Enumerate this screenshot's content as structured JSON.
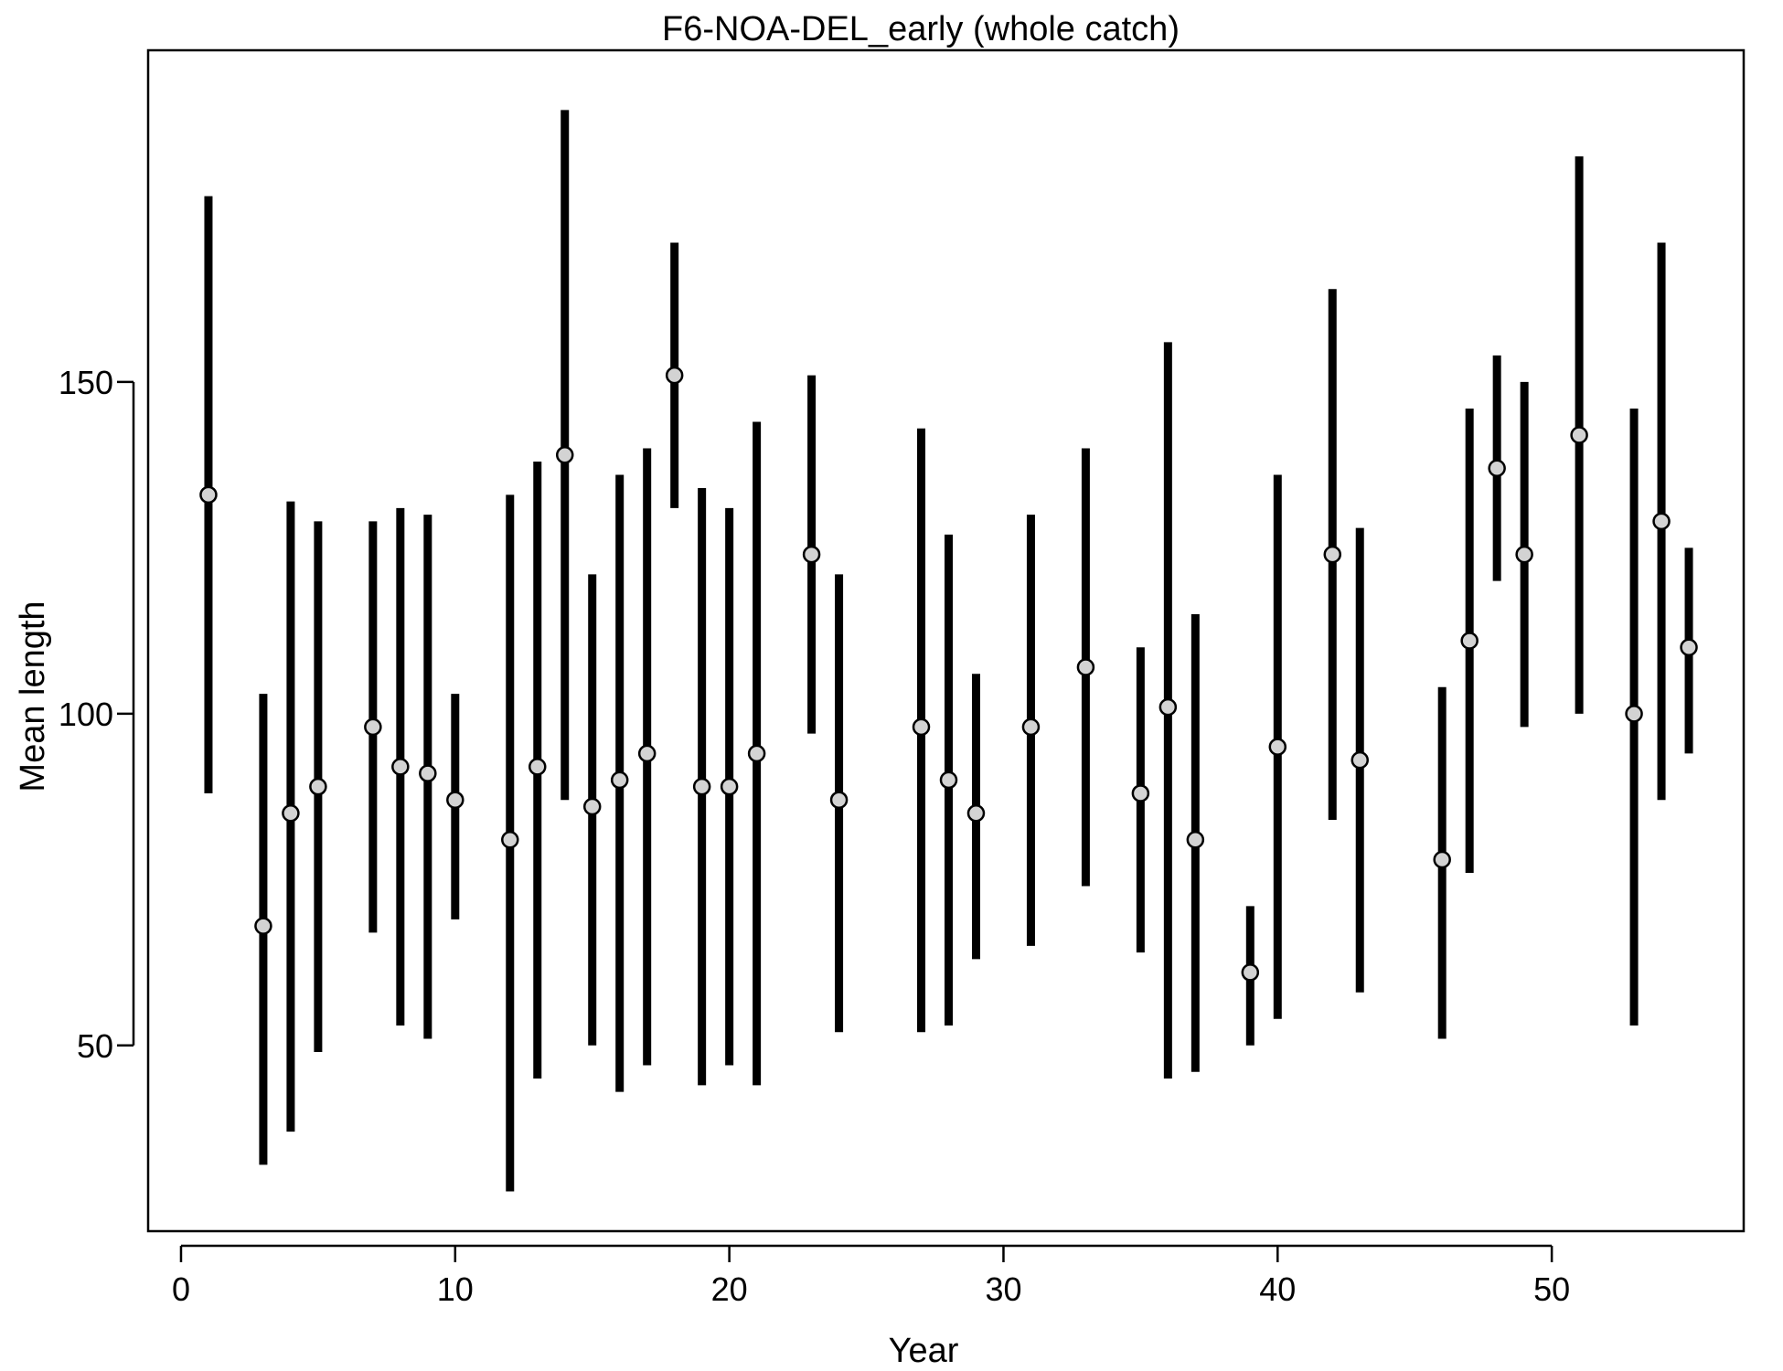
{
  "chart_data": {
    "type": "scatter",
    "title": "F6-NOA-DEL_early (whole catch)",
    "xlabel": "Year",
    "ylabel": "Mean length",
    "xlim": [
      -1.2,
      57
    ],
    "ylim": [
      22,
      200
    ],
    "xticks": [
      0,
      10,
      20,
      30,
      40,
      50
    ],
    "yticks": [
      50,
      100,
      150
    ],
    "grid": false,
    "points": [
      {
        "x": 1,
        "y": 133,
        "lo": 88,
        "hi": 178
      },
      {
        "x": 3,
        "y": 68,
        "lo": 32,
        "hi": 103
      },
      {
        "x": 4,
        "y": 85,
        "lo": 37,
        "hi": 132
      },
      {
        "x": 5,
        "y": 89,
        "lo": 49,
        "hi": 129
      },
      {
        "x": 7,
        "y": 98,
        "lo": 67,
        "hi": 129
      },
      {
        "x": 8,
        "y": 92,
        "lo": 53,
        "hi": 131
      },
      {
        "x": 9,
        "y": 91,
        "lo": 51,
        "hi": 130
      },
      {
        "x": 10,
        "y": 87,
        "lo": 69,
        "hi": 103
      },
      {
        "x": 12,
        "y": 81,
        "lo": 28,
        "hi": 133
      },
      {
        "x": 13,
        "y": 92,
        "lo": 45,
        "hi": 138
      },
      {
        "x": 14,
        "y": 139,
        "lo": 87,
        "hi": 191
      },
      {
        "x": 15,
        "y": 86,
        "lo": 50,
        "hi": 121
      },
      {
        "x": 16,
        "y": 90,
        "lo": 43,
        "hi": 136
      },
      {
        "x": 17,
        "y": 94,
        "lo": 47,
        "hi": 140
      },
      {
        "x": 18,
        "y": 151,
        "lo": 131,
        "hi": 171
      },
      {
        "x": 19,
        "y": 89,
        "lo": 44,
        "hi": 134
      },
      {
        "x": 20,
        "y": 89,
        "lo": 47,
        "hi": 131
      },
      {
        "x": 21,
        "y": 94,
        "lo": 44,
        "hi": 144
      },
      {
        "x": 23,
        "y": 124,
        "lo": 97,
        "hi": 151
      },
      {
        "x": 24,
        "y": 87,
        "lo": 52,
        "hi": 121
      },
      {
        "x": 27,
        "y": 98,
        "lo": 52,
        "hi": 143
      },
      {
        "x": 28,
        "y": 90,
        "lo": 53,
        "hi": 127
      },
      {
        "x": 29,
        "y": 85,
        "lo": 63,
        "hi": 106
      },
      {
        "x": 31,
        "y": 98,
        "lo": 65,
        "hi": 130
      },
      {
        "x": 33,
        "y": 107,
        "lo": 74,
        "hi": 140
      },
      {
        "x": 35,
        "y": 88,
        "lo": 64,
        "hi": 110
      },
      {
        "x": 36,
        "y": 101,
        "lo": 45,
        "hi": 156
      },
      {
        "x": 37,
        "y": 81,
        "lo": 46,
        "hi": 115
      },
      {
        "x": 39,
        "y": 61,
        "lo": 50,
        "hi": 71
      },
      {
        "x": 40,
        "y": 95,
        "lo": 54,
        "hi": 136
      },
      {
        "x": 42,
        "y": 124,
        "lo": 84,
        "hi": 164
      },
      {
        "x": 43,
        "y": 93,
        "lo": 58,
        "hi": 128
      },
      {
        "x": 46,
        "y": 78,
        "lo": 51,
        "hi": 104
      },
      {
        "x": 47,
        "y": 111,
        "lo": 76,
        "hi": 146
      },
      {
        "x": 48,
        "y": 137,
        "lo": 120,
        "hi": 154
      },
      {
        "x": 49,
        "y": 124,
        "lo": 98,
        "hi": 150
      },
      {
        "x": 51,
        "y": 142,
        "lo": 100,
        "hi": 184
      },
      {
        "x": 53,
        "y": 100,
        "lo": 53,
        "hi": 146
      },
      {
        "x": 54,
        "y": 129,
        "lo": 87,
        "hi": 171
      },
      {
        "x": 55,
        "y": 110,
        "lo": 94,
        "hi": 125
      }
    ]
  }
}
